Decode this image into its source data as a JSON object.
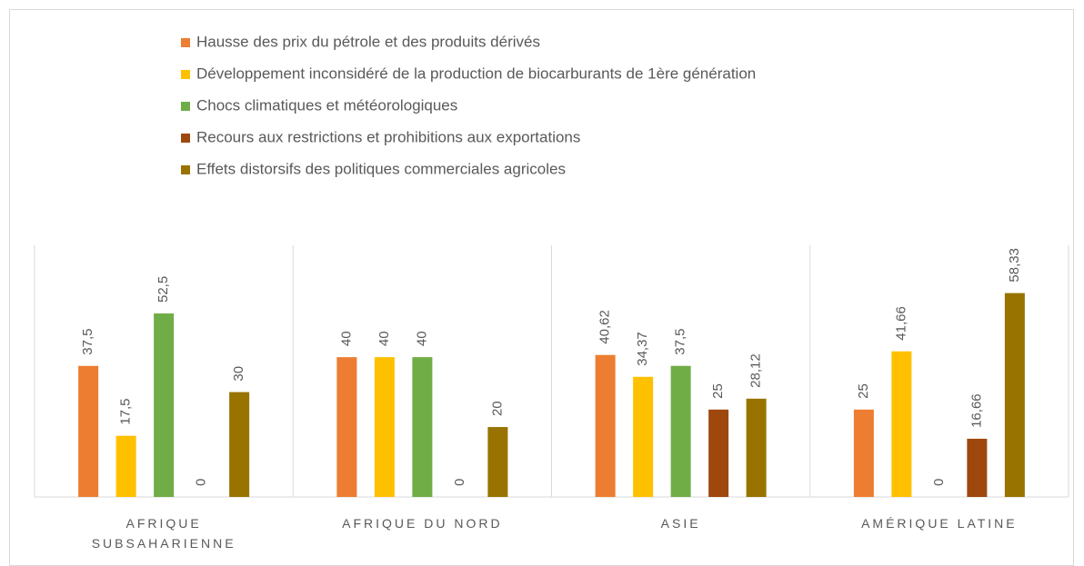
{
  "chart_data": {
    "type": "bar",
    "categories": [
      "AFRIQUE SUBSAHARIENNE",
      "AFRIQUE DU NORD",
      "ASIE",
      "AMÉRIQUE LATINE"
    ],
    "series": [
      {
        "name": "Hausse des prix du pétrole et des produits dérivés",
        "color": "#ED7D31",
        "values": [
          37.5,
          40,
          40.62,
          25
        ],
        "value_labels": [
          "37,5",
          "40",
          "40,62",
          "25"
        ]
      },
      {
        "name": "Développement inconsidéré de la production de biocarburants de 1ère génération",
        "color": "#FFC000",
        "values": [
          17.5,
          40,
          34.37,
          41.66
        ],
        "value_labels": [
          "17,5",
          "40",
          "34,37",
          "41,66"
        ]
      },
      {
        "name": "Chocs climatiques et météorologiques",
        "color": "#70AD47",
        "values": [
          52.5,
          40,
          37.5,
          0
        ],
        "value_labels": [
          "52,5",
          "40",
          "37,5",
          "0"
        ]
      },
      {
        "name": "Recours aux restrictions et prohibitions aux exportations",
        "color": "#9E480E",
        "values": [
          0,
          0,
          25,
          16.66
        ],
        "value_labels": [
          "0",
          "0",
          "25",
          "16,66"
        ]
      },
      {
        "name": "Effets distorsifs des politiques commerciales agricoles",
        "color": "#997300",
        "values": [
          30,
          20,
          28.12,
          58.33
        ],
        "value_labels": [
          "30",
          "20",
          "28,12",
          "58,33"
        ]
      }
    ],
    "ylim": [
      0,
      72
    ],
    "legend": "top"
  }
}
